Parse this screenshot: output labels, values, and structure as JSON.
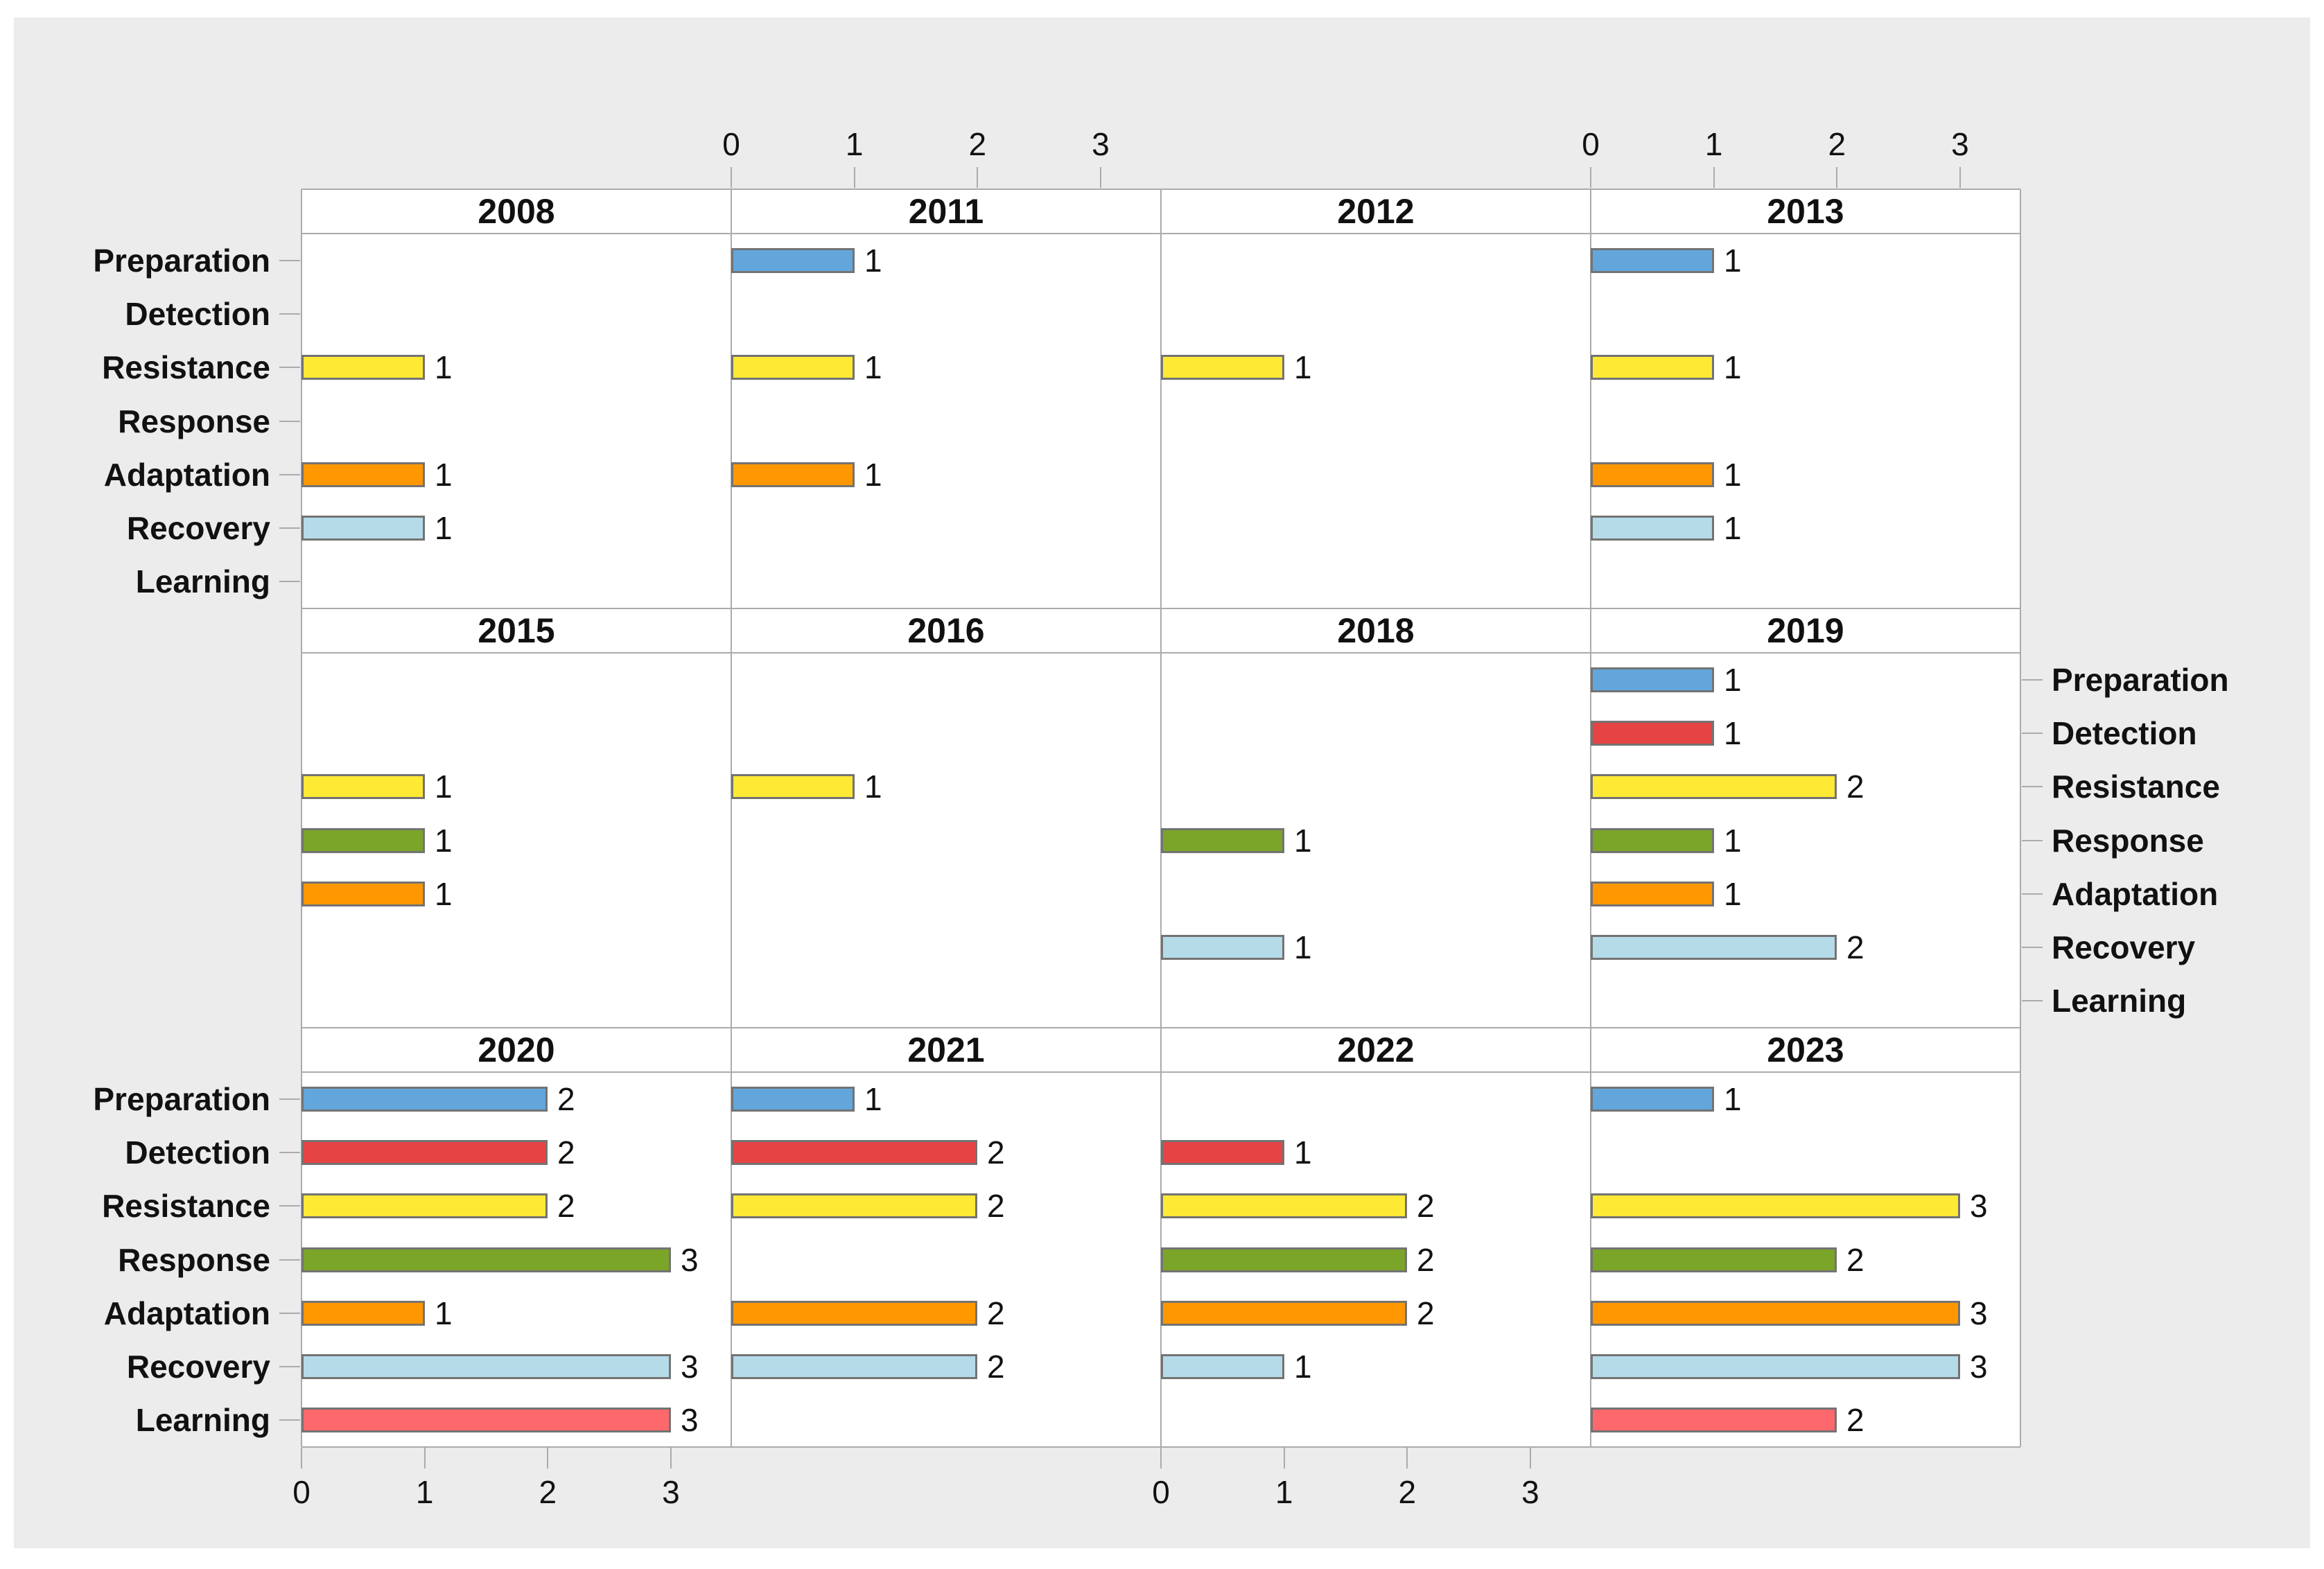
{
  "chart_data": {
    "type": "bar",
    "orientation": "horizontal",
    "title": "",
    "categories": [
      "Preparation",
      "Detection",
      "Resistance",
      "Response",
      "Adaptation",
      "Recovery",
      "Learning"
    ],
    "category_colors": {
      "Preparation": "#62A6DB",
      "Detection": "#E64345",
      "Resistance": "#FEE935",
      "Response": "#7BA529",
      "Adaptation": "#FF9800",
      "Recovery": "#B5DBE9",
      "Learning": "#FC686C"
    },
    "bar_border_color": "#737373",
    "grid_color": "#ABABAB",
    "panel_bg": "#FFFFFF",
    "outer_bg": "#ECECEC",
    "x_ticks": [
      "0",
      "1",
      "2",
      "3"
    ],
    "x_max": 3.49,
    "legend_position": "none",
    "facets": [
      {
        "year": "2008",
        "values": {
          "Resistance": 1,
          "Adaptation": 1,
          "Recovery": 1
        }
      },
      {
        "year": "2011",
        "values": {
          "Preparation": 1,
          "Resistance": 1,
          "Adaptation": 1
        }
      },
      {
        "year": "2012",
        "values": {
          "Resistance": 1
        }
      },
      {
        "year": "2013",
        "values": {
          "Preparation": 1,
          "Resistance": 1,
          "Adaptation": 1,
          "Recovery": 1
        }
      },
      {
        "year": "2015",
        "values": {
          "Resistance": 1,
          "Response": 1,
          "Adaptation": 1
        }
      },
      {
        "year": "2016",
        "values": {
          "Resistance": 1
        }
      },
      {
        "year": "2018",
        "values": {
          "Response": 1,
          "Recovery": 1
        }
      },
      {
        "year": "2019",
        "values": {
          "Preparation": 1,
          "Detection": 1,
          "Resistance": 2,
          "Response": 1,
          "Adaptation": 1,
          "Recovery": 2
        }
      },
      {
        "year": "2020",
        "values": {
          "Preparation": 2,
          "Detection": 2,
          "Resistance": 2,
          "Response": 3,
          "Adaptation": 1,
          "Recovery": 3,
          "Learning": 3
        }
      },
      {
        "year": "2021",
        "values": {
          "Preparation": 1,
          "Detection": 2,
          "Resistance": 2,
          "Adaptation": 2,
          "Recovery": 2
        }
      },
      {
        "year": "2022",
        "values": {
          "Detection": 1,
          "Resistance": 2,
          "Response": 2,
          "Adaptation": 2,
          "Recovery": 1
        }
      },
      {
        "year": "2023",
        "values": {
          "Preparation": 1,
          "Resistance": 3,
          "Response": 2,
          "Adaptation": 3,
          "Recovery": 3,
          "Learning": 2
        }
      }
    ],
    "layout_hints": {
      "grid_rows": 3,
      "grid_cols": 4,
      "left_category_labels_on_rows": [
        0,
        2
      ],
      "right_category_labels_on_rows": [
        1
      ],
      "top_axis_on_cols": [
        1,
        3
      ],
      "bottom_axis_on_cols": [
        0,
        2
      ]
    }
  }
}
